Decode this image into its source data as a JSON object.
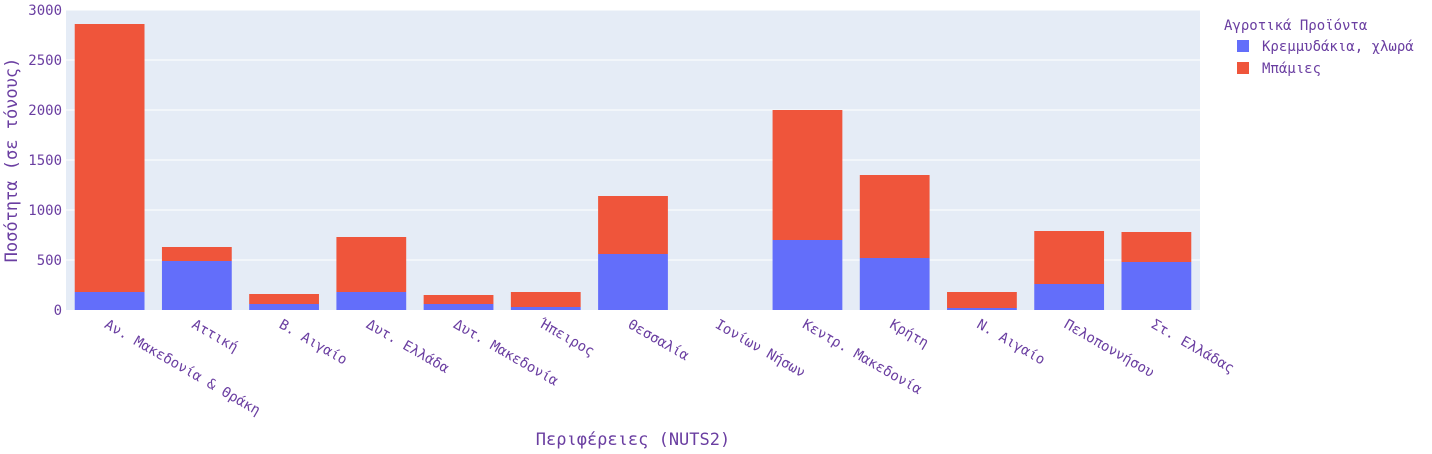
{
  "chart_data": {
    "type": "bar",
    "barmode": "stack",
    "xlabel": "Περιφέρειες (NUTS2)",
    "ylabel": "Ποσότητα (σε τόνους)",
    "ylim": [
      0,
      3000
    ],
    "yticks": [
      0,
      500,
      1000,
      1500,
      2000,
      2500,
      3000
    ],
    "grid": true,
    "legend_position": "top-right",
    "legend_title": "Αγροτικά Προϊόντα",
    "categories": [
      "Αν. Μακεδονία & Θράκη",
      "Αττική",
      "Β. Αιγαίο",
      "Δυτ. Ελλάδα",
      "Δυτ. Μακεδονία",
      "Ήπειρος",
      "Θεσσαλία",
      "Ιονίων Νήσων",
      "Κεντρ. Μακεδονία",
      "Κρήτη",
      "Ν. Αιγαίο",
      "Πελοποννήσου",
      "Στ. Ελλάδας"
    ],
    "series": [
      {
        "name": "Κρεμμυδάκια, χλωρά",
        "color": "#636efa",
        "values": [
          180,
          490,
          60,
          180,
          60,
          30,
          560,
          0,
          700,
          520,
          20,
          260,
          480
        ]
      },
      {
        "name": "Μπάμιες",
        "color": "#ef553b",
        "values": [
          2680,
          140,
          100,
          550,
          90,
          150,
          580,
          0,
          1300,
          830,
          160,
          530,
          300
        ]
      }
    ]
  }
}
